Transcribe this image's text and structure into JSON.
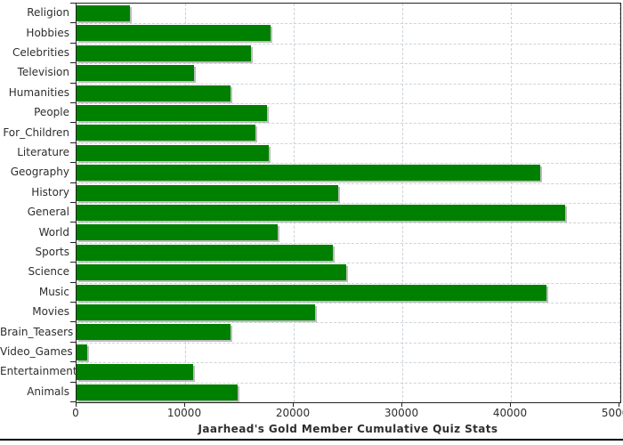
{
  "chart_data": {
    "type": "bar",
    "orientation": "horizontal",
    "title": "Jaarhead's Gold Member Cumulative Quiz Stats",
    "categories": [
      "Religion",
      "Hobbies",
      "Celebrities",
      "Television",
      "Humanities",
      "People",
      "For_Children",
      "Literature",
      "Geography",
      "History",
      "General",
      "World",
      "Sports",
      "Science",
      "Music",
      "Movies",
      "Brain_Teasers",
      "Video_Games",
      "Entertainment",
      "Animals"
    ],
    "values": [
      4900,
      17900,
      16100,
      10800,
      14200,
      17500,
      16500,
      17700,
      42700,
      24100,
      45000,
      18500,
      23600,
      24800,
      43300,
      22000,
      14200,
      1000,
      10700,
      14800
    ],
    "xlabel": "",
    "ylabel": "",
    "xlim": [
      0,
      50000
    ],
    "xticks": [
      0,
      10000,
      20000,
      30000,
      40000,
      50000
    ],
    "grid": "dashed, both axes",
    "legend": "none",
    "bar_color": "#008000",
    "shadow_color": "#bdbdbd",
    "grid_color": "#ccd3da",
    "axis_color": "#222222",
    "text_color": "#2e2e2e",
    "background_color": "#ffffff"
  }
}
